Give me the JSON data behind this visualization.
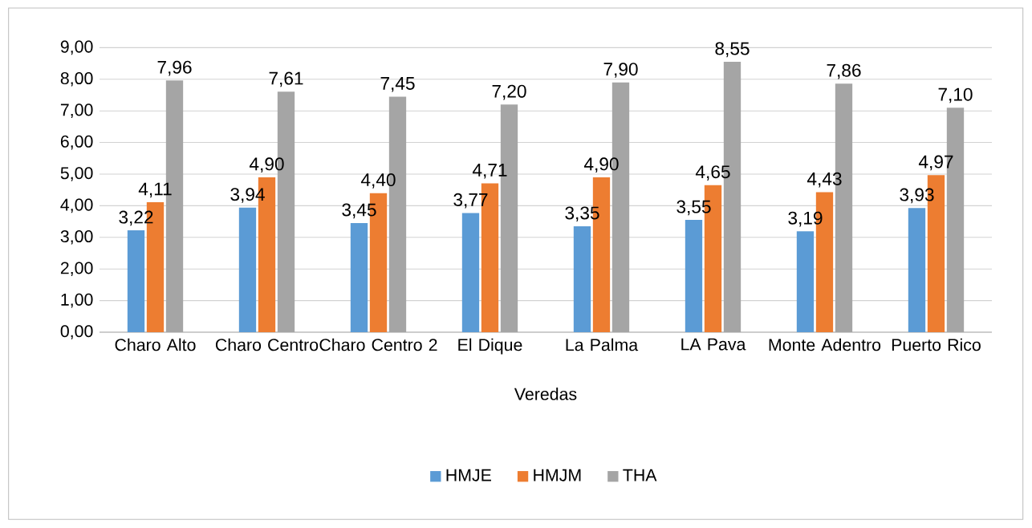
{
  "chart_data": {
    "type": "bar",
    "xlabel": "Veredas",
    "categories": [
      "Charo Alto",
      "Charo Centro",
      "Charo Centro 2",
      "El Dique",
      "La Palma",
      "LA Pava",
      "Monte Adentro",
      "Puerto Rico"
    ],
    "series": [
      {
        "name": "HMJE",
        "color": "#5b9bd5",
        "values": [
          3.22,
          3.94,
          3.45,
          3.77,
          3.35,
          3.55,
          3.19,
          3.93
        ],
        "value_labels": [
          "3,22",
          "3,94",
          "3,45",
          "3,77",
          "3,35",
          "3,55",
          "3,19",
          "3,93"
        ]
      },
      {
        "name": "HMJM",
        "color": "#ed7d31",
        "values": [
          4.11,
          4.9,
          4.4,
          4.71,
          4.9,
          4.65,
          4.43,
          4.97
        ],
        "value_labels": [
          "4,11",
          "4,90",
          "4,40",
          "4,71",
          "4,90",
          "4,65",
          "4,43",
          "4,97"
        ]
      },
      {
        "name": "THA",
        "color": "#a5a5a5",
        "values": [
          7.96,
          7.61,
          7.45,
          7.2,
          7.9,
          8.55,
          7.86,
          7.1
        ],
        "value_labels": [
          "7,96",
          "7,61",
          "7,45",
          "7,20",
          "7,90",
          "8,55",
          "7,86",
          "7,10"
        ]
      }
    ],
    "ylim": [
      0,
      9
    ],
    "yticks": [
      {
        "value": 0,
        "label": "0,00"
      },
      {
        "value": 1,
        "label": "1,00"
      },
      {
        "value": 2,
        "label": "2,00"
      },
      {
        "value": 3,
        "label": "3,00"
      },
      {
        "value": 4,
        "label": "4,00"
      },
      {
        "value": 5,
        "label": "5,00"
      },
      {
        "value": 6,
        "label": "6,00"
      },
      {
        "value": 7,
        "label": "7,00"
      },
      {
        "value": 8,
        "label": "8,00"
      },
      {
        "value": 9,
        "label": "9,00"
      }
    ],
    "grid": "y",
    "legend": "bottom"
  }
}
